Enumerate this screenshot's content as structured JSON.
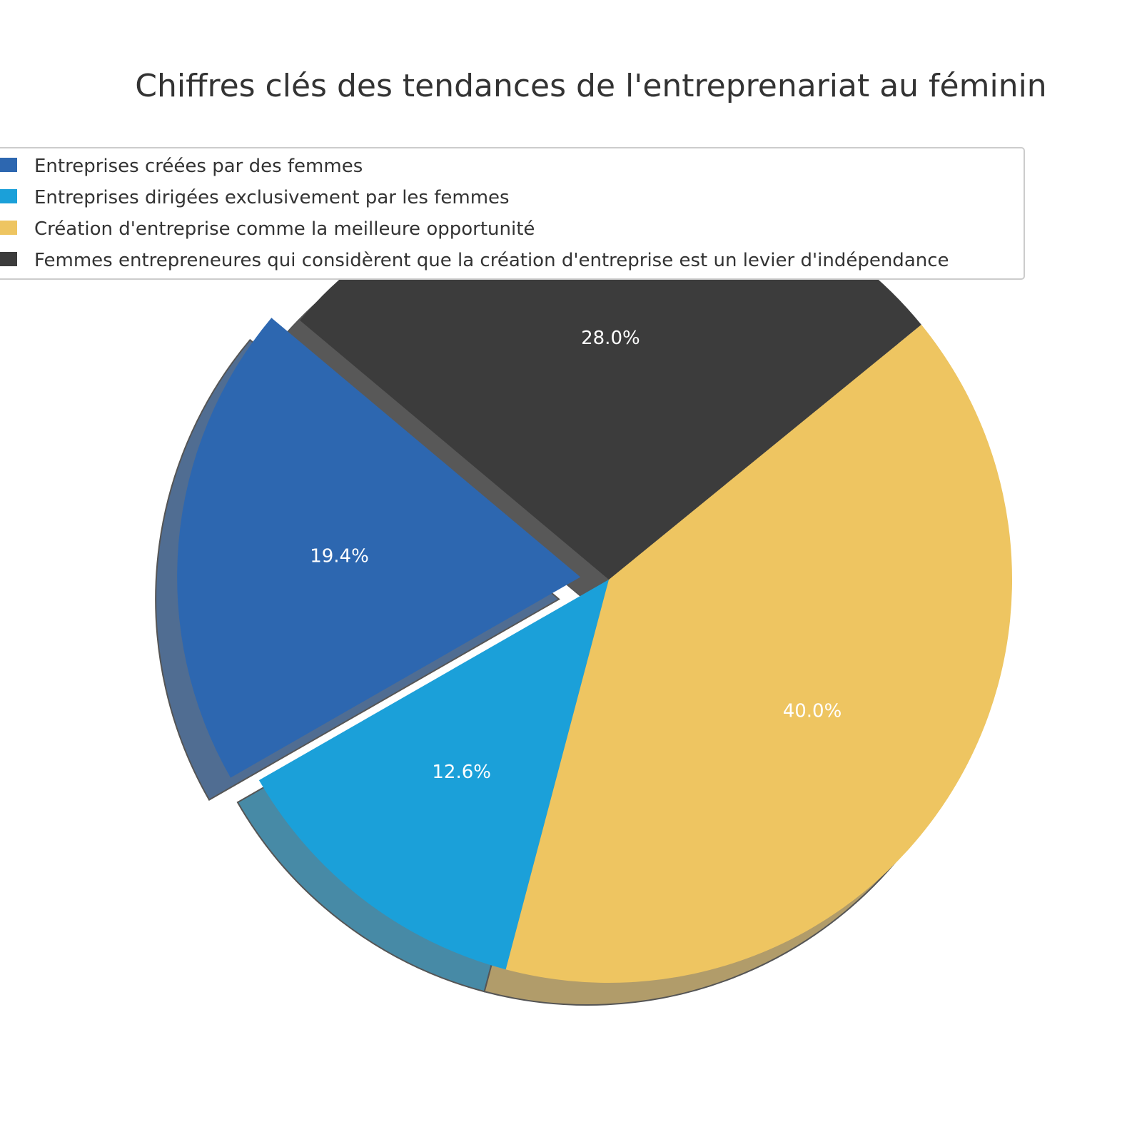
{
  "chart_data": {
    "type": "pie",
    "title": "Chiffres clés des tendances de l'entreprenariat au féminin",
    "slices": [
      {
        "label": "Entreprises créées par des femmes",
        "value": 19.4,
        "pct_label": "19.4%",
        "color": "#2d67b0",
        "explode": true
      },
      {
        "label": "Entreprises dirigées exclusivement par les femmes",
        "value": 12.6,
        "pct_label": "12.6%",
        "color": "#1ba0d9",
        "explode": false
      },
      {
        "label": "Création d'entreprise comme la meilleure opportunité",
        "value": 40.0,
        "pct_label": "40.0%",
        "color": "#eec561",
        "explode": false
      },
      {
        "label": "Femmes entrepreneures qui considèrent que la création d'entreprise est un levier d'indépendance",
        "value": 28.0,
        "pct_label": "28.0%",
        "color": "#3c3c3c",
        "explode": false
      }
    ],
    "start_angle_deg": 140,
    "direction": "counterclockwise",
    "shadow": true,
    "legend_placement": "top-left"
  }
}
